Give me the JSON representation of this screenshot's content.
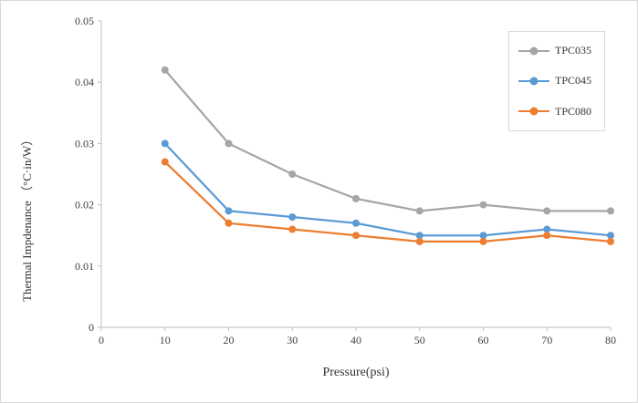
{
  "chart_data": {
    "type": "line",
    "title": "",
    "xlabel": "Pressure(psi)",
    "ylabel": "Thermal Impdenance （°C·in/W）",
    "x": [
      10,
      20,
      30,
      40,
      50,
      60,
      70,
      80
    ],
    "x_ticks": [
      "0",
      "10",
      "20",
      "30",
      "40",
      "50",
      "60",
      "70",
      "80"
    ],
    "y_ticks": [
      "0",
      "0.01",
      "0.02",
      "0.03",
      "0.04",
      "0.05"
    ],
    "xlim": [
      0,
      80
    ],
    "ylim": [
      0,
      0.05
    ],
    "grid": false,
    "legend_position": "top-right",
    "axis_color": "#bfbfbf",
    "series": [
      {
        "name": "TPC035",
        "color": "#a6a6a6",
        "values": [
          0.042,
          0.03,
          0.025,
          0.021,
          0.019,
          0.02,
          0.019,
          0.019
        ]
      },
      {
        "name": "TPC045",
        "color": "#5b9bd5",
        "values": [
          0.03,
          0.019,
          0.018,
          0.017,
          0.015,
          0.015,
          0.016,
          0.015
        ]
      },
      {
        "name": "TPC080",
        "color": "#ed7d31",
        "values": [
          0.027,
          0.017,
          0.016,
          0.015,
          0.014,
          0.014,
          0.015,
          0.014
        ]
      }
    ]
  }
}
